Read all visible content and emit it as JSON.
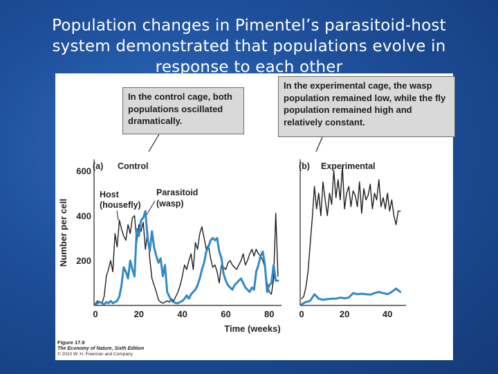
{
  "slide": {
    "title_lines": [
      "Population changes in Pimentel’s parasitoid-host",
      "system demonstrated that populations evolve in",
      "response to each other"
    ]
  },
  "callouts": {
    "control": "In the control cage, both populations oscillated dramatically.",
    "experimental": "In the experimental cage, the wasp population remained low, while the fly population remained high and relatively constant."
  },
  "credit": {
    "figure": "Figure 17.9",
    "book": "The Economy of Nature, Sixth Edition",
    "copyright": "© 2010 W. H. Freeman and Company"
  },
  "colors": {
    "host": "#1c1c1c",
    "parasitoid": "#3189c6"
  },
  "chart_data": [
    {
      "type": "line",
      "panel_letter": "(a)",
      "panel_label": "Control",
      "ylabel": "Number per cell",
      "xlabel": "Time (weeks)",
      "xlim": [
        0,
        85
      ],
      "ylim": [
        0,
        620
      ],
      "xticks": [
        0,
        20,
        40,
        60,
        80
      ],
      "yticks": [
        200,
        400,
        600
      ],
      "annotations": [
        {
          "text": [
            "Host",
            "(housefly)"
          ],
          "target": "host"
        },
        {
          "text": [
            "Parasitoid",
            "(wasp)"
          ],
          "target": "parasitoid"
        }
      ],
      "series": [
        {
          "key": "host",
          "x": [
            0,
            1,
            2,
            3,
            4,
            5,
            6,
            7,
            8,
            9,
            10,
            11,
            12,
            13,
            14,
            15,
            16,
            17,
            18,
            19,
            20,
            21,
            22,
            23,
            24,
            25,
            26,
            27,
            28,
            29,
            30,
            31,
            32,
            33,
            34,
            35,
            36,
            37,
            38,
            39,
            40,
            41,
            42,
            43,
            44,
            45,
            46,
            47,
            48,
            49,
            50,
            51,
            52,
            53,
            54,
            55,
            56,
            57,
            58,
            59,
            60,
            61,
            62,
            63,
            64,
            65,
            66,
            67,
            68,
            69,
            70,
            71,
            72,
            73,
            74,
            75,
            76,
            77,
            78,
            79,
            80,
            81,
            82,
            83,
            84
          ],
          "values": [
            10,
            20,
            15,
            10,
            40,
            130,
            160,
            200,
            150,
            320,
            260,
            380,
            340,
            310,
            290,
            360,
            320,
            390,
            400,
            280,
            360,
            330,
            370,
            250,
            330,
            210,
            120,
            90,
            60,
            25,
            15,
            10,
            15,
            20,
            15,
            30,
            20,
            40,
            60,
            90,
            130,
            180,
            160,
            200,
            230,
            160,
            280,
            250,
            320,
            350,
            300,
            250,
            270,
            210,
            170,
            180,
            150,
            100,
            180,
            170,
            160,
            190,
            200,
            180,
            170,
            160,
            180,
            200,
            230,
            180,
            200,
            230,
            250,
            220,
            250,
            230,
            220,
            200,
            170,
            100,
            60,
            50,
            120,
            410,
            130
          ]
        },
        {
          "key": "parasitoid",
          "x": [
            0,
            1,
            2,
            3,
            4,
            5,
            6,
            7,
            8,
            9,
            10,
            11,
            12,
            13,
            14,
            15,
            16,
            17,
            18,
            19,
            20,
            21,
            22,
            23,
            24,
            25,
            26,
            27,
            28,
            29,
            30,
            31,
            32,
            33,
            34,
            35,
            36,
            37,
            38,
            39,
            40,
            41,
            42,
            43,
            44,
            45,
            46,
            47,
            48,
            49,
            50,
            51,
            52,
            53,
            54,
            55,
            56,
            57,
            58,
            59,
            60,
            61,
            62,
            63,
            64,
            65,
            66,
            67,
            68,
            69,
            70,
            71,
            72,
            73,
            74,
            75,
            76,
            77,
            78,
            79,
            80,
            81,
            82,
            83,
            84
          ],
          "values": [
            5,
            10,
            15,
            10,
            5,
            15,
            10,
            20,
            10,
            15,
            20,
            40,
            90,
            170,
            150,
            120,
            200,
            160,
            130,
            340,
            310,
            380,
            390,
            420,
            300,
            240,
            330,
            260,
            220,
            190,
            210,
            130,
            180,
            60,
            40,
            20,
            15,
            10,
            10,
            15,
            20,
            30,
            45,
            30,
            50,
            60,
            70,
            90,
            120,
            160,
            190,
            240,
            260,
            290,
            300,
            290,
            300,
            240,
            210,
            140,
            110,
            90,
            80,
            70,
            90,
            100,
            110,
            120,
            100,
            80,
            70,
            60,
            80,
            70,
            150,
            180,
            220,
            240,
            180,
            60,
            90,
            100,
            180,
            110,
            110
          ]
        }
      ]
    },
    {
      "type": "line",
      "panel_letter": "(b)",
      "panel_label": "Experimental",
      "xlabel": "Time (weeks)",
      "xlim": [
        0,
        48
      ],
      "ylim": [
        0,
        620
      ],
      "xticks": [
        0,
        20,
        40
      ],
      "series": [
        {
          "key": "host",
          "x": [
            0,
            1,
            2,
            3,
            4,
            5,
            6,
            7,
            8,
            9,
            10,
            11,
            12,
            13,
            14,
            15,
            16,
            17,
            18,
            19,
            20,
            21,
            22,
            23,
            24,
            25,
            26,
            27,
            28,
            29,
            30,
            31,
            32,
            33,
            34,
            35,
            36,
            37,
            38,
            39,
            40,
            41,
            42,
            43,
            44,
            45,
            46
          ],
          "values": [
            30,
            40,
            80,
            150,
            270,
            390,
            530,
            430,
            500,
            400,
            550,
            470,
            400,
            500,
            450,
            600,
            480,
            560,
            470,
            620,
            430,
            500,
            530,
            440,
            510,
            490,
            440,
            550,
            410,
            520,
            470,
            490,
            540,
            430,
            500,
            470,
            560,
            440,
            480,
            430,
            500,
            420,
            470,
            400,
            360,
            420,
            420
          ]
        },
        {
          "key": "parasitoid",
          "x": [
            0,
            2,
            4,
            6,
            8,
            10,
            12,
            14,
            16,
            18,
            20,
            22,
            24,
            26,
            28,
            30,
            32,
            34,
            36,
            38,
            40,
            42,
            44,
            46
          ],
          "values": [
            5,
            15,
            20,
            50,
            30,
            25,
            28,
            30,
            30,
            35,
            32,
            35,
            55,
            50,
            52,
            50,
            48,
            55,
            60,
            55,
            50,
            60,
            75,
            60
          ]
        }
      ]
    }
  ]
}
